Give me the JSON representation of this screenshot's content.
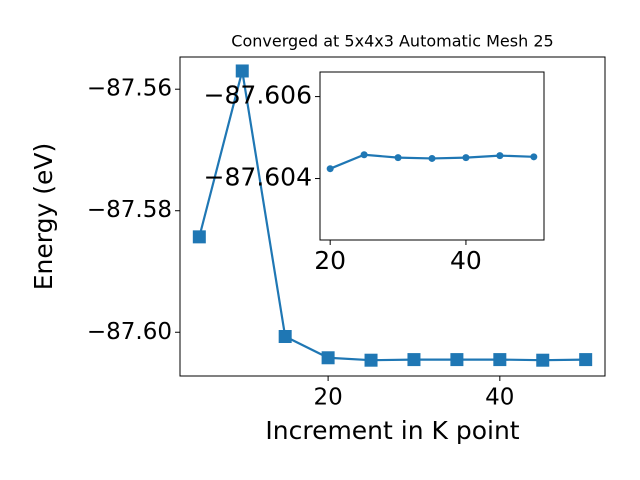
{
  "chart_data": [
    {
      "type": "line",
      "title": "Converged at 5x4x3 Automatic Mesh 25",
      "xlabel": "Increment in K point",
      "ylabel": "Energy (eV)",
      "x": [
        5,
        10,
        15,
        20,
        25,
        30,
        35,
        40,
        45,
        50
      ],
      "series": [
        {
          "color": "#1f77b4",
          "marker": "square",
          "values": [
            -87.5843,
            -87.557,
            -87.6007,
            -87.6042,
            -87.6046,
            -87.6045,
            -87.6045,
            -87.6045,
            -87.6046,
            -87.6045
          ]
        }
      ],
      "xlim": [
        2.75,
        52.25
      ],
      "ylim": [
        -87.6072,
        -87.5547
      ],
      "xticks": [
        20,
        40
      ],
      "yticks": [
        {
          "value": -87.56,
          "label": "−87.56"
        },
        {
          "value": -87.58,
          "label": "−87.58"
        },
        {
          "value": -87.6,
          "label": "−87.60"
        }
      ]
    },
    {
      "type": "line",
      "x": [
        20,
        25,
        30,
        35,
        40,
        45,
        50
      ],
      "series": [
        {
          "color": "#1f77b4",
          "marker": "circle",
          "values": [
            -87.60424,
            -87.60458,
            -87.60451,
            -87.60449,
            -87.60451,
            -87.60456,
            -87.60453
          ]
        }
      ],
      "xlim": [
        18.5,
        51.5
      ],
      "ylim": [
        -87.6025,
        -87.6066
      ],
      "xticks": [
        20,
        40
      ],
      "yticks": [
        {
          "value": -87.606,
          "label": "−87.606"
        },
        {
          "value": -87.604,
          "label": "−87.604"
        }
      ]
    }
  ]
}
